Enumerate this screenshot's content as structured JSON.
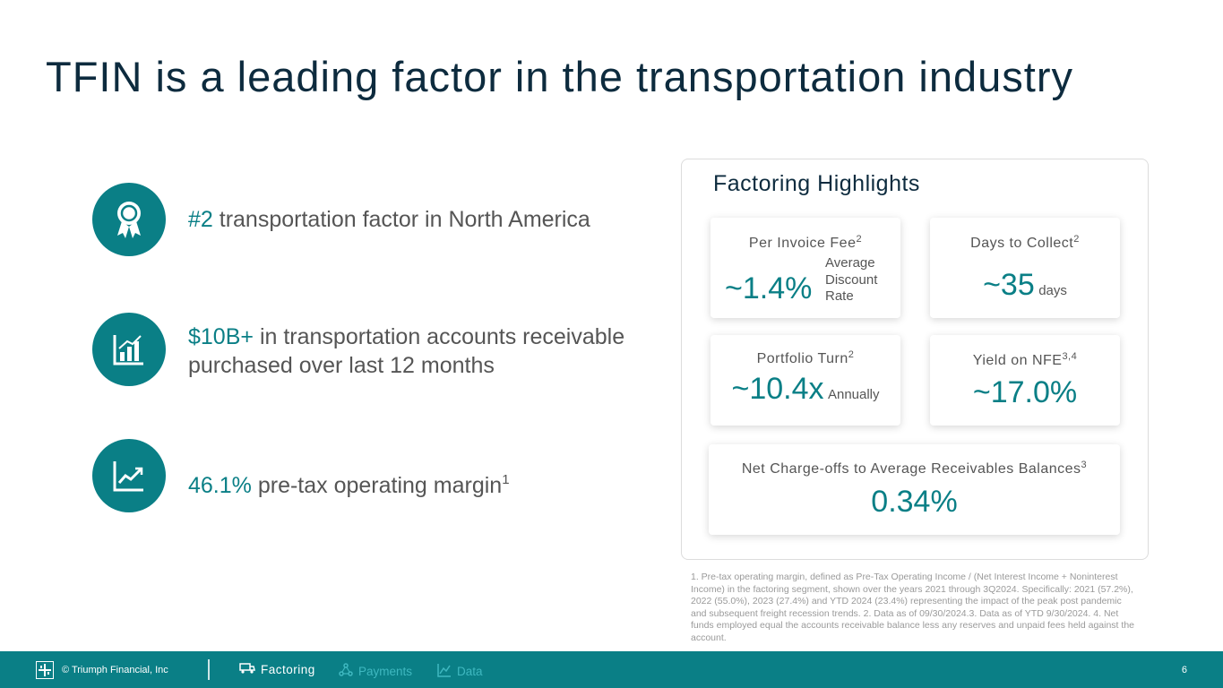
{
  "slide": {
    "title": "TFIN is a leading factor in the transportation industry",
    "page_number": "6"
  },
  "bullets": [
    {
      "icon": "award-ribbon-icon",
      "highlight": "#2",
      "text": " transportation factor in North America",
      "sup": ""
    },
    {
      "icon": "bar-chart-icon",
      "highlight": "$10B+",
      "text": " in transportation accounts receivable purchased over last 12 months",
      "sup": ""
    },
    {
      "icon": "trend-up-icon",
      "highlight": "46.1%",
      "text": " pre-tax operating margin",
      "sup": "1"
    }
  ],
  "highlights": {
    "title": "Factoring Highlights",
    "per_invoice_fee": {
      "label": "Per Invoice Fee",
      "sup": "2",
      "value": "~1.4%",
      "unit_line1": "Average",
      "unit_line2": "Discount",
      "unit_line3": "Rate"
    },
    "days_to_collect": {
      "label": "Days to Collect",
      "sup": "2",
      "value": "~35",
      "unit": "days"
    },
    "portfolio_turn": {
      "label": "Portfolio Turn",
      "sup": "2",
      "value": "~10.4x",
      "unit": "Annually"
    },
    "yield_on_nfe": {
      "label": "Yield on NFE",
      "sup": "3,4",
      "value": "~17.0%"
    },
    "net_charge_offs": {
      "label": "Net Charge-offs to Average Receivables Balances",
      "sup": "3",
      "value": "0.34%"
    }
  },
  "footnote": "1. Pre-tax operating margin, defined as Pre-Tax Operating Income / (Net Interest Income + Noninterest Income) in the factoring segment, shown over the years 2021 through 3Q2024. Specifically: 2021 (57.2%), 2022 (55.0%), 2023 (27.4%) and YTD 2024 (23.4%) representing the impact of the peak post pandemic and subsequent freight recession trends. 2. Data as of 09/30/2024.3. Data as of YTD 9/30/2024. 4. Net funds employed equal the accounts receivable balance less any reserves and unpaid fees held against the account.",
  "footer": {
    "copyright": "© Triumph Financial, Inc",
    "nav": [
      {
        "label": "Factoring",
        "icon": "truck-icon",
        "active": true
      },
      {
        "label": "Payments",
        "icon": "network-icon",
        "active": false
      },
      {
        "label": "Data",
        "icon": "line-chart-icon",
        "active": false
      }
    ]
  },
  "colors": {
    "accent": "#0a7f86",
    "title": "#0d2b3e",
    "text": "#555555",
    "nav_inactive": "#3fb8c0"
  }
}
